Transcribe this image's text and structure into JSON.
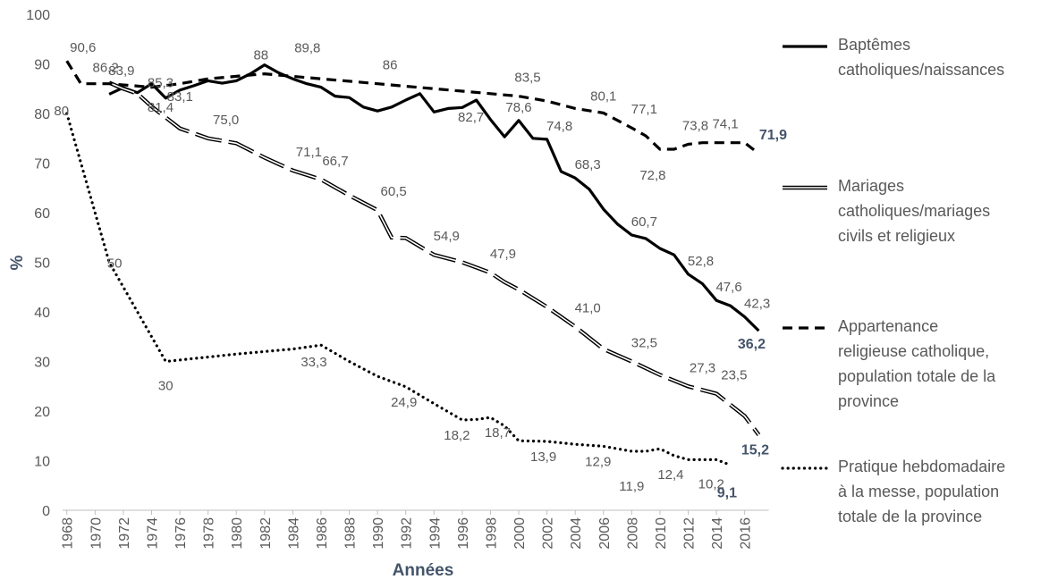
{
  "chart_data": {
    "type": "line",
    "xlabel": "Années",
    "ylabel": "%",
    "ylim": [
      0,
      100
    ],
    "yticks": [
      "0",
      "10",
      "20",
      "30",
      "40",
      "50",
      "60",
      "70",
      "80",
      "90",
      "100"
    ],
    "xticks": [
      "1968",
      "1970",
      "1972",
      "1974",
      "1976",
      "1978",
      "1980",
      "1982",
      "1984",
      "1986",
      "1988",
      "1990",
      "1992",
      "1994",
      "1996",
      "1998",
      "2000",
      "2002",
      "2004",
      "2006",
      "2008",
      "2010",
      "2012",
      "2014",
      "2016"
    ],
    "grid": false,
    "legend_position": "right",
    "series": [
      {
        "name": "Baptêmes catholiques/naissances",
        "legend_lines": [
          "Baptêmes",
          "catholiques/naissances"
        ],
        "style": "solid",
        "color": "#000000",
        "points": [
          [
            1971,
            83.9
          ],
          [
            1972,
            85.2
          ],
          [
            1973,
            84.2
          ],
          [
            1974,
            86.0
          ],
          [
            1975,
            83.1
          ],
          [
            1976,
            84.7
          ],
          [
            1977,
            85.6
          ],
          [
            1978,
            86.6
          ],
          [
            1979,
            86.1
          ],
          [
            1980,
            86.6
          ],
          [
            1981,
            88.0
          ],
          [
            1982,
            89.8
          ],
          [
            1983,
            88.2
          ],
          [
            1984,
            87.0
          ],
          [
            1985,
            86.0
          ],
          [
            1986,
            85.3
          ],
          [
            1987,
            83.5
          ],
          [
            1988,
            83.2
          ],
          [
            1989,
            81.3
          ],
          [
            1990,
            80.5
          ],
          [
            1991,
            81.3
          ],
          [
            1992,
            82.7
          ],
          [
            1993,
            84.0
          ],
          [
            1994,
            80.3
          ],
          [
            1995,
            81.0
          ],
          [
            1996,
            81.2
          ],
          [
            1997,
            82.7
          ],
          [
            1998,
            78.8
          ],
          [
            1999,
            75.3
          ],
          [
            2000,
            78.6
          ],
          [
            2001,
            75.0
          ],
          [
            2002,
            74.8
          ],
          [
            2003,
            68.3
          ],
          [
            2004,
            67.0
          ],
          [
            2005,
            64.7
          ],
          [
            2006,
            60.7
          ],
          [
            2007,
            57.7
          ],
          [
            2008,
            55.5
          ],
          [
            2009,
            54.8
          ],
          [
            2010,
            52.8
          ],
          [
            2011,
            51.5
          ],
          [
            2012,
            47.6
          ],
          [
            2013,
            45.7
          ],
          [
            2014,
            42.3
          ],
          [
            2015,
            41.2
          ],
          [
            2016,
            39.0
          ],
          [
            2017,
            36.2
          ]
        ],
        "labels": [
          {
            "x": 1972,
            "text": "83,9"
          },
          {
            "x": 1975,
            "text": "83,1"
          },
          {
            "x": 1982,
            "text": "89,8"
          },
          {
            "x": 1997,
            "text": "82,7"
          },
          {
            "x": 2000,
            "text": "78,6"
          },
          {
            "x": 2002,
            "text": "74,8"
          },
          {
            "x": 2004,
            "text": "68,3"
          },
          {
            "x": 2008,
            "text": "60,7"
          },
          {
            "x": 2012,
            "text": "52,8"
          },
          {
            "x": 2014,
            "text": "47,6"
          },
          {
            "x": 2016,
            "text": "42,3"
          },
          {
            "x": 2017,
            "text": "36,2",
            "bold": true
          }
        ]
      },
      {
        "name": "Mariages catholiques/mariages civils et religieux",
        "legend_lines": [
          "Mariages",
          "catholiques/mariages",
          "civils et religieux"
        ],
        "style": "double",
        "color": "#000000",
        "points": [
          [
            1971,
            86.2
          ],
          [
            1972,
            85.0
          ],
          [
            1973,
            84.0
          ],
          [
            1974,
            81.4
          ],
          [
            1976,
            77.0
          ],
          [
            1978,
            75.0
          ],
          [
            1980,
            74.0
          ],
          [
            1982,
            71.1
          ],
          [
            1984,
            68.5
          ],
          [
            1986,
            66.7
          ],
          [
            1988,
            63.5
          ],
          [
            1990,
            60.5
          ],
          [
            1991,
            55.0
          ],
          [
            1992,
            54.9
          ],
          [
            1994,
            51.5
          ],
          [
            1996,
            50.0
          ],
          [
            1998,
            47.9
          ],
          [
            1999,
            46.0
          ],
          [
            2000,
            44.5
          ],
          [
            2002,
            41.0
          ],
          [
            2004,
            37.0
          ],
          [
            2006,
            32.5
          ],
          [
            2008,
            30.0
          ],
          [
            2010,
            27.3
          ],
          [
            2012,
            25.0
          ],
          [
            2014,
            23.5
          ],
          [
            2016,
            19.0
          ],
          [
            2017,
            15.2
          ]
        ],
        "labels": [
          {
            "x": 1971,
            "text": "86,2"
          },
          {
            "x": 1974,
            "text": "81,4"
          },
          {
            "x": 1978,
            "text": "75,0"
          },
          {
            "x": 1984,
            "text": "71,1"
          },
          {
            "x": 1986,
            "text": "66,7"
          },
          {
            "x": 1990,
            "text": "60,5"
          },
          {
            "x": 1994,
            "text": "54,9"
          },
          {
            "x": 1998,
            "text": "47,9"
          },
          {
            "x": 2004,
            "text": "41,0"
          },
          {
            "x": 2008,
            "text": "32,5"
          },
          {
            "x": 2012,
            "text": "27,3"
          },
          {
            "x": 2015,
            "text": "23,5"
          },
          {
            "x": 2017,
            "text": "15,2",
            "bold": true
          }
        ]
      },
      {
        "name": "Appartenance religieuse catholique, population totale de la province",
        "legend_lines": [
          "Appartenance",
          "religieuse catholique,",
          "population totale de la",
          "province"
        ],
        "style": "dashed",
        "color": "#000000",
        "points": [
          [
            1968,
            90.6
          ],
          [
            1969,
            86.0
          ],
          [
            1971,
            86.0
          ],
          [
            1974,
            85.3
          ],
          [
            1976,
            86.0
          ],
          [
            1978,
            87.0
          ],
          [
            1980,
            87.5
          ],
          [
            1982,
            88.0
          ],
          [
            1984,
            87.5
          ],
          [
            1986,
            87.0
          ],
          [
            1988,
            86.5
          ],
          [
            1990,
            86.0
          ],
          [
            1992,
            85.5
          ],
          [
            1994,
            85.0
          ],
          [
            1996,
            84.5
          ],
          [
            1998,
            84.0
          ],
          [
            2000,
            83.5
          ],
          [
            2002,
            82.5
          ],
          [
            2004,
            81.0
          ],
          [
            2006,
            80.1
          ],
          [
            2008,
            77.1
          ],
          [
            2009,
            75.5
          ],
          [
            2010,
            72.8
          ],
          [
            2011,
            72.8
          ],
          [
            2012,
            73.8
          ],
          [
            2013,
            74.1
          ],
          [
            2014,
            74.1
          ],
          [
            2015,
            74.1
          ],
          [
            2016,
            74.1
          ],
          [
            2017,
            71.9
          ]
        ],
        "labels": [
          {
            "x": 1968,
            "text": "90,6"
          },
          {
            "x": 1974,
            "text": "85,3"
          },
          {
            "x": 1982,
            "text": "88"
          },
          {
            "x": 1990,
            "text": "86"
          },
          {
            "x": 2000,
            "text": "83,5"
          },
          {
            "x": 2006,
            "text": "80,1"
          },
          {
            "x": 2008,
            "text": "77,1"
          },
          {
            "x": 2010,
            "text": "72,8"
          },
          {
            "x": 2012,
            "text": "73,8"
          },
          {
            "x": 2014,
            "text": "74,1"
          },
          {
            "x": 2017,
            "text": "71,9",
            "bold": true
          }
        ]
      },
      {
        "name": "Pratique hebdomadaire à la messe, population totale de la province",
        "legend_lines": [
          "Pratique hebdomadaire",
          "à la messe, population",
          "totale de la province"
        ],
        "style": "dotted",
        "color": "#000000",
        "points": [
          [
            1968,
            80
          ],
          [
            1971,
            50
          ],
          [
            1975,
            30
          ],
          [
            1980,
            31.5
          ],
          [
            1982,
            32.0
          ],
          [
            1984,
            32.5
          ],
          [
            1986,
            33.3
          ],
          [
            1988,
            30.0
          ],
          [
            1990,
            27.0
          ],
          [
            1992,
            24.9
          ],
          [
            1994,
            21.5
          ],
          [
            1996,
            18.2
          ],
          [
            1997,
            18.3
          ],
          [
            1998,
            18.7
          ],
          [
            1999,
            17.0
          ],
          [
            2000,
            14.0
          ],
          [
            2002,
            13.9
          ],
          [
            2004,
            13.3
          ],
          [
            2006,
            12.9
          ],
          [
            2008,
            11.9
          ],
          [
            2009,
            11.9
          ],
          [
            2010,
            12.4
          ],
          [
            2011,
            11.0
          ],
          [
            2012,
            10.2
          ],
          [
            2014,
            10.2
          ],
          [
            2015,
            9.1
          ]
        ],
        "labels": [
          {
            "x": 1968,
            "text": "80"
          },
          {
            "x": 1971,
            "text": "50"
          },
          {
            "x": 1975,
            "text": "30"
          },
          {
            "x": 1986,
            "text": "33,3"
          },
          {
            "x": 1992,
            "text": "24,9"
          },
          {
            "x": 1996,
            "text": "18,2"
          },
          {
            "x": 1998,
            "text": "18,7"
          },
          {
            "x": 2002,
            "text": "13,9"
          },
          {
            "x": 2006,
            "text": "12,9"
          },
          {
            "x": 2008,
            "text": "11,9"
          },
          {
            "x": 2010,
            "text": "12,4"
          },
          {
            "x": 2013,
            "text": "10,2"
          },
          {
            "x": 2015,
            "text": "9,1",
            "bold": true
          }
        ]
      }
    ]
  }
}
